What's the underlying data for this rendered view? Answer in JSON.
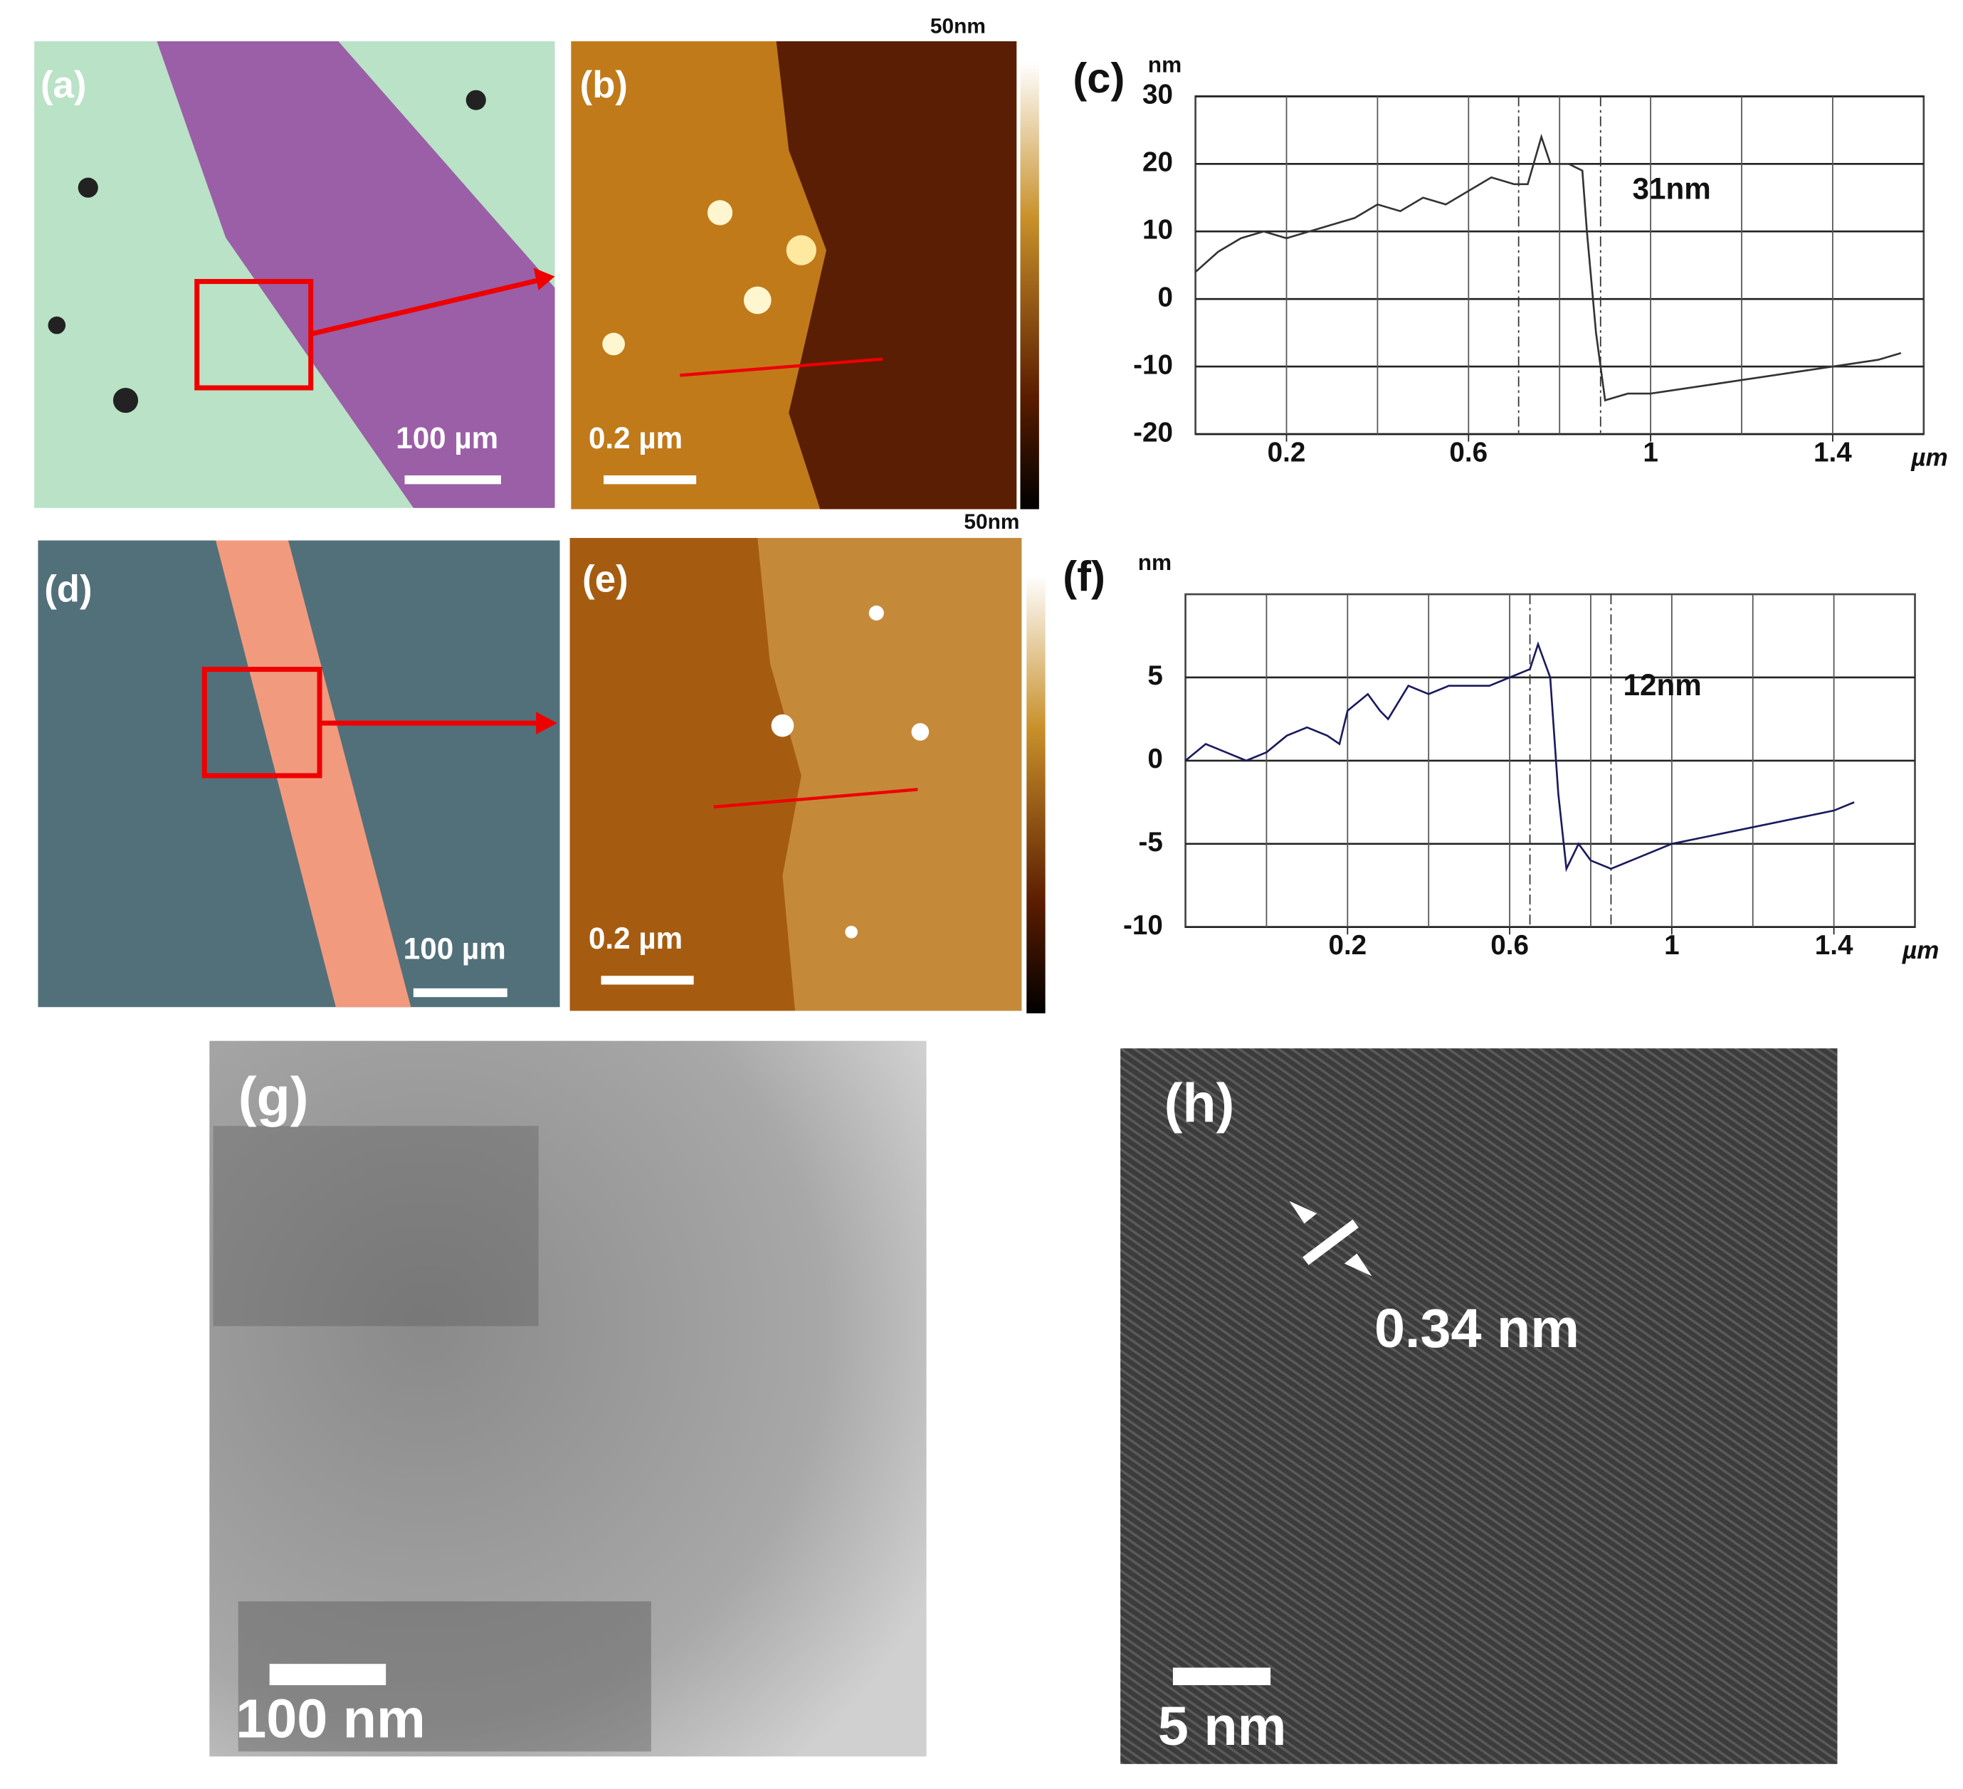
{
  "panels": {
    "a": {
      "label": "(a)",
      "scale": "100 µm"
    },
    "b": {
      "label": "(b)",
      "scale": "0.2 µm",
      "colorbar_max": "50nm"
    },
    "d": {
      "label": "(d)",
      "scale": "100 µm"
    },
    "e": {
      "label": "(e)",
      "scale": "0.2 µm",
      "colorbar_max": "50nm"
    },
    "g": {
      "label": "(g)",
      "scale": "100 nm"
    },
    "h": {
      "label": "(h)",
      "scale": "5 nm",
      "annotation": "0.34 nm"
    }
  },
  "chart_data": [
    {
      "type": "line",
      "label": "(c)",
      "y_unit": "nm",
      "x_unit": "µm",
      "annotation": "31nm",
      "x": [
        0,
        0.05,
        0.1,
        0.15,
        0.2,
        0.25,
        0.3,
        0.35,
        0.4,
        0.45,
        0.5,
        0.55,
        0.6,
        0.65,
        0.7,
        0.73,
        0.76,
        0.78,
        0.82,
        0.85,
        0.86,
        0.88,
        0.9,
        0.95,
        1.0,
        1.1,
        1.2,
        1.3,
        1.4,
        1.5,
        1.55
      ],
      "series": [
        {
          "color": "#333333",
          "values": [
            4,
            7,
            9,
            10,
            9,
            10,
            11,
            12,
            14,
            13,
            15,
            14,
            16,
            18,
            17,
            17,
            24,
            20,
            20,
            19,
            10,
            -5,
            -15,
            -14,
            -14,
            -13,
            -12,
            -11,
            -10,
            -9,
            -8
          ]
        }
      ],
      "xlim": [
        0,
        1.6
      ],
      "ylim": [
        -20,
        30
      ],
      "xticks": [
        0.2,
        0.6,
        1,
        1.4
      ],
      "yticks": [
        -20,
        -10,
        0,
        10,
        20,
        30
      ],
      "xgrid": [
        0.2,
        0.4,
        0.6,
        0.8,
        1,
        1.2,
        1.4
      ],
      "cursors": [
        0.71,
        0.89
      ],
      "grid": true
    },
    {
      "type": "line",
      "label": "(f)",
      "y_unit": "nm",
      "x_unit": "µm",
      "annotation": "12nm",
      "x": [
        -0.2,
        -0.15,
        -0.1,
        -0.05,
        0,
        0.05,
        0.1,
        0.15,
        0.18,
        0.2,
        0.25,
        0.28,
        0.3,
        0.35,
        0.4,
        0.45,
        0.5,
        0.55,
        0.6,
        0.65,
        0.67,
        0.7,
        0.72,
        0.74,
        0.77,
        0.8,
        0.85,
        0.9,
        1.0,
        1.1,
        1.2,
        1.3,
        1.4,
        1.45
      ],
      "series": [
        {
          "color": "#1a1a5e",
          "values": [
            0,
            1,
            0.5,
            0,
            0.5,
            1.5,
            2,
            1.5,
            1,
            3,
            4,
            3,
            2.5,
            4.5,
            4,
            4.5,
            4.5,
            4.5,
            5,
            5.5,
            7,
            5,
            -2,
            -6.5,
            -5,
            -6,
            -6.5,
            -6,
            -5,
            -4.5,
            -4,
            -3.5,
            -3,
            -2.5
          ]
        }
      ],
      "xlim": [
        -0.2,
        1.6
      ],
      "ylim": [
        -10,
        10
      ],
      "xticks": [
        0.2,
        0.6,
        1,
        1.4
      ],
      "yticks": [
        -10,
        -5,
        0,
        5
      ],
      "xgrid": [
        0,
        0.2,
        0.4,
        0.6,
        0.8,
        1,
        1.2,
        1.4
      ],
      "cursors": [
        0.65,
        0.85
      ],
      "grid": true
    }
  ]
}
